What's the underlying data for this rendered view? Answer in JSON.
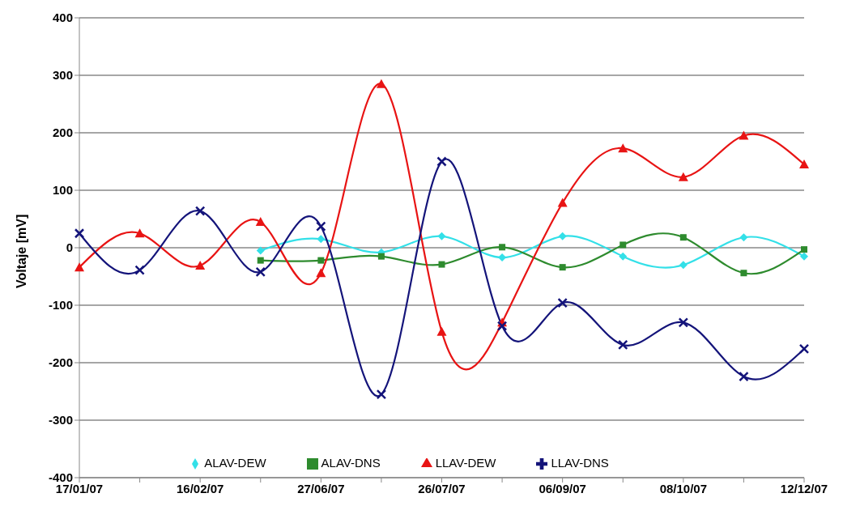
{
  "chart_data": {
    "type": "line",
    "ylabel": "Voltaje [mV]",
    "categories": [
      "17/01/07",
      null,
      "16/02/07",
      null,
      "27/06/07",
      null,
      "26/07/07",
      null,
      "06/09/07",
      null,
      "08/10/07",
      null,
      "12/12/07"
    ],
    "series": [
      {
        "name": "ALAV-DEW",
        "color": "#33e0e8",
        "marker": "diamond",
        "values": [
          null,
          null,
          null,
          -5,
          15,
          -8,
          20,
          -17,
          20,
          -15,
          -30,
          18,
          -15
        ]
      },
      {
        "name": "ALAV-DNS",
        "color": "#2e8b2e",
        "marker": "square",
        "values": [
          null,
          null,
          null,
          -22,
          -22,
          -15,
          -29,
          1,
          -34,
          5,
          18,
          -44,
          -3
        ]
      },
      {
        "name": "LLAV-DEW",
        "color": "#e81414",
        "marker": "triangle",
        "values": [
          -34,
          25,
          -31,
          45,
          -44,
          285,
          -146,
          -130,
          78,
          173,
          123,
          195,
          145
        ]
      },
      {
        "name": "LLAV-DNS",
        "color": "#14147a",
        "marker": "cross",
        "values": [
          25,
          -39,
          64,
          -42,
          37,
          -255,
          150,
          -136,
          -96,
          -169,
          -130,
          -224,
          -176
        ]
      }
    ],
    "ylim": [
      -400,
      400
    ],
    "yticks": [
      -400,
      -300,
      -200,
      -100,
      0,
      100,
      200,
      300,
      400
    ],
    "grid": "y",
    "legend": "bottom",
    "line_style": "solid"
  }
}
